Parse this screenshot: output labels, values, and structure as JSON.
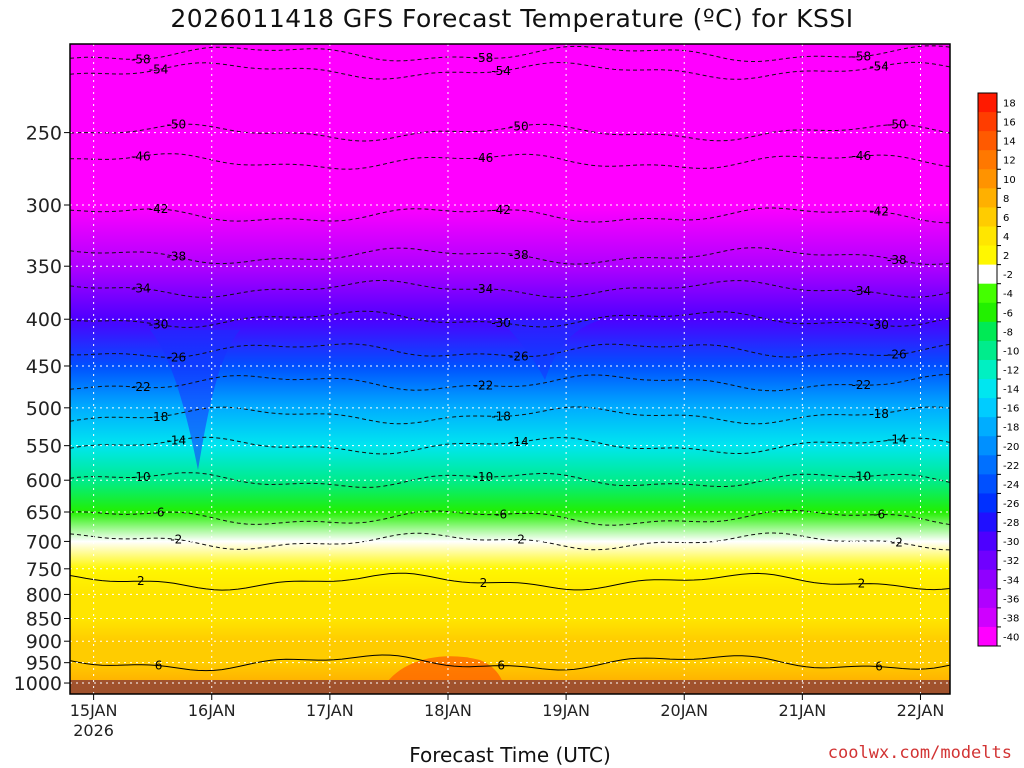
{
  "title": "2026011418 GFS Forecast Temperature (ºC) for KSSI",
  "credit": "coolwx.com/modelts",
  "chart_data": {
    "type": "heatmap",
    "title": "2026011418 GFS Forecast Temperature (ºC) for KSSI",
    "xlabel": "Forecast Time (UTC)",
    "ylabel": "",
    "x_ticks": [
      "15JAN",
      "16JAN",
      "17JAN",
      "18JAN",
      "19JAN",
      "20JAN",
      "21JAN",
      "22JAN"
    ],
    "x_start_label": "2026",
    "xlim": [
      -0.2,
      7.25
    ],
    "y_scale": "log",
    "y_ticks": [
      250,
      300,
      350,
      400,
      450,
      500,
      550,
      600,
      650,
      700,
      750,
      800,
      850,
      900,
      950,
      1000
    ],
    "ylim": [
      1028,
      200
    ],
    "color_scale": {
      "levels": [
        18,
        16,
        14,
        12,
        10,
        8,
        6,
        4,
        2,
        -2,
        -4,
        -6,
        -8,
        -10,
        -12,
        -14,
        -16,
        -18,
        -20,
        -22,
        -24,
        -26,
        -28,
        -30,
        -32,
        -34,
        -36,
        -38,
        -40
      ],
      "colors": [
        "#ff1a00",
        "#ff3d00",
        "#ff5a00",
        "#ff7800",
        "#ff9300",
        "#ffb000",
        "#ffcc00",
        "#ffe600",
        "#fff700",
        "#ffffff",
        "#44ff00",
        "#22f000",
        "#00ea55",
        "#00ec8c",
        "#00f0c2",
        "#00e6f0",
        "#00ccff",
        "#00adff",
        "#0090ff",
        "#0070ff",
        "#0050ff",
        "#0030ff",
        "#2010ff",
        "#4d00ff",
        "#7000ff",
        "#9000ff",
        "#b000ff",
        "#cf00ff",
        "#ff00ff"
      ]
    },
    "pressure_levels": [
      250,
      300,
      350,
      400,
      450,
      500,
      550,
      600,
      650,
      700,
      750,
      800,
      850,
      900,
      950,
      1000
    ],
    "mean_temperature_profile": [
      -48,
      -43,
      -37,
      -30,
      -24,
      -19,
      -14,
      -10,
      -7,
      -2,
      1,
      3,
      4,
      5,
      6,
      7
    ],
    "contour_labels": [
      "-58",
      "-54",
      "-50",
      "-46",
      "-42",
      "-38",
      "-34",
      "-30",
      "-26",
      "-22",
      "-18",
      "-14",
      "-10",
      "-6",
      "-2",
      "2",
      "6"
    ],
    "grid": true,
    "grid_style": "dotted white"
  }
}
